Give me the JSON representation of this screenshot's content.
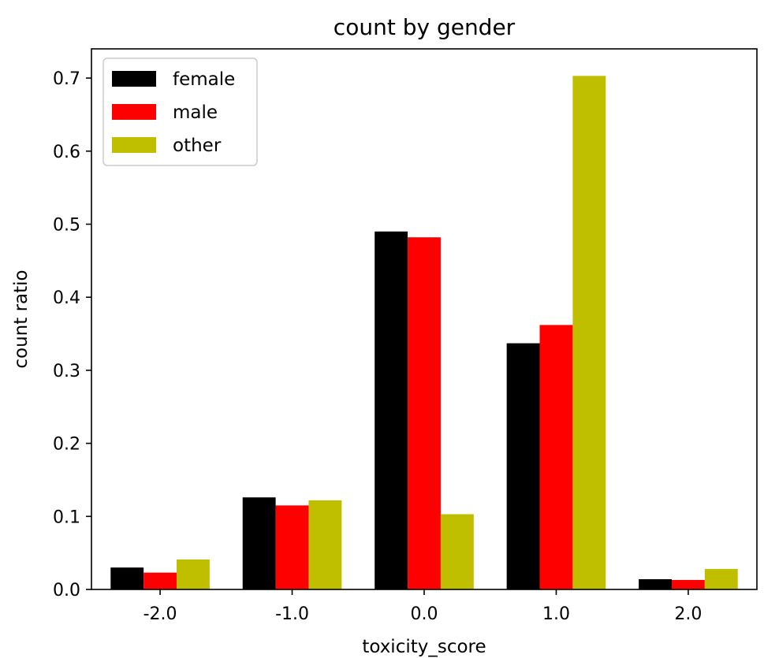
{
  "chart_data": {
    "type": "bar",
    "title": "count by gender",
    "xlabel": "toxicity_score",
    "ylabel": "count ratio",
    "categories": [
      "-2.0",
      "-1.0",
      "0.0",
      "1.0",
      "2.0"
    ],
    "series": [
      {
        "name": "female",
        "color": "#000000",
        "values": [
          0.03,
          0.126,
          0.49,
          0.337,
          0.014
        ]
      },
      {
        "name": "male",
        "color": "#ff0000",
        "values": [
          0.023,
          0.115,
          0.482,
          0.362,
          0.013
        ]
      },
      {
        "name": "other",
        "color": "#bfbf00",
        "values": [
          0.041,
          0.122,
          0.103,
          0.703,
          0.028
        ]
      }
    ],
    "ylim": [
      0,
      0.74
    ],
    "yticks": [
      0.0,
      0.1,
      0.2,
      0.3,
      0.4,
      0.5,
      0.6,
      0.7
    ],
    "ytick_labels": [
      "0.0",
      "0.1",
      "0.2",
      "0.3",
      "0.4",
      "0.5",
      "0.6",
      "0.7"
    ],
    "grid": false,
    "legend_position": "upper-left"
  }
}
